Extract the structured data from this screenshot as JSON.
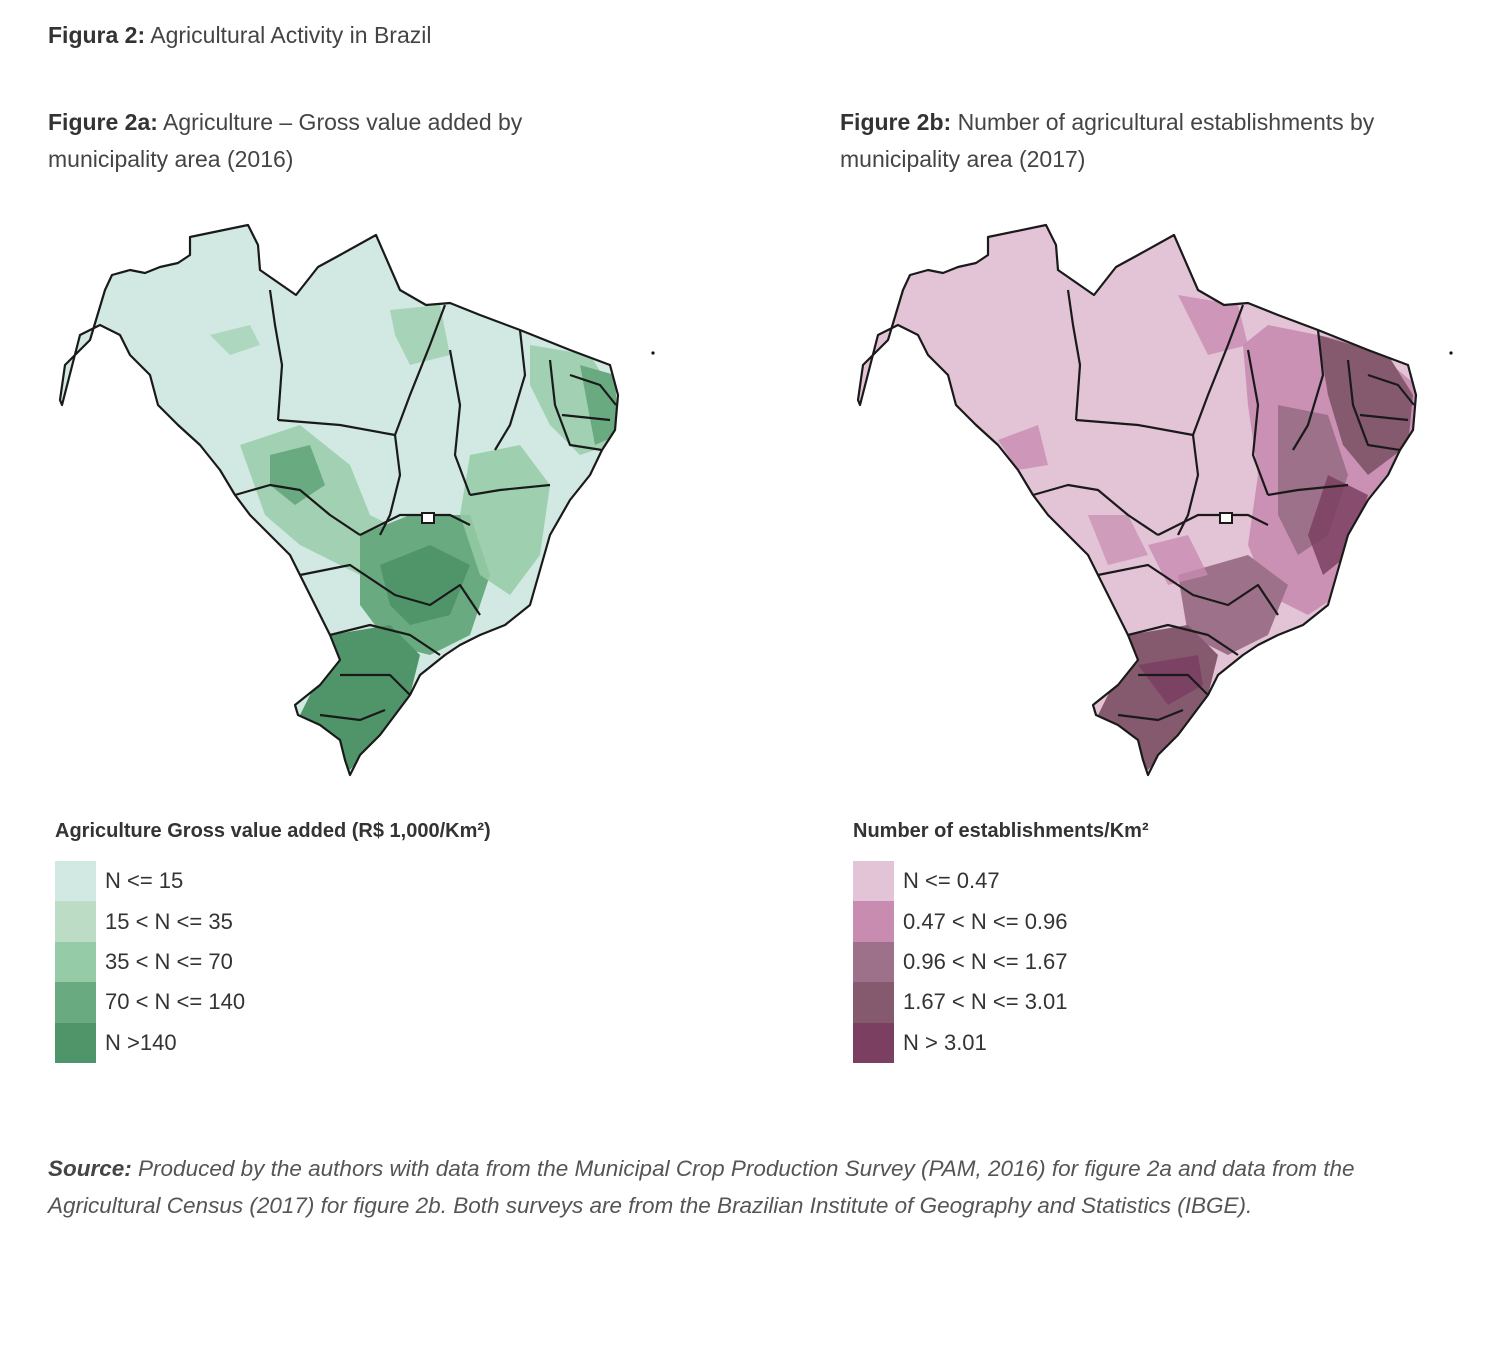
{
  "figure": {
    "prefix": "Figura 2:",
    "title": "Agricultural Activity in Brazil"
  },
  "panel_a": {
    "prefix": "Figure 2a:",
    "title": "Agriculture – Gross value added by municipality area (2016)",
    "legend_title": "Agriculture Gross value added (R$ 1,000/Km²)",
    "classes": [
      {
        "label": "N <= 15",
        "color": "#d1e9e2"
      },
      {
        "label": "15 < N <= 35",
        "color": "#bcdcc6"
      },
      {
        "label": "35 < N <= 70",
        "color": "#95cba6"
      },
      {
        "label": "70 < N <= 140",
        "color": "#6aaa80"
      },
      {
        "label": "N >140",
        "color": "#50956a"
      }
    ]
  },
  "panel_b": {
    "prefix": "Figure 2b:",
    "title": "Number of agricultural establishments by municipality area (2017)",
    "legend_title": "Number of establishments/Km²",
    "classes": [
      {
        "label": "N <= 0.47",
        "color": "#e3c3d6"
      },
      {
        "label": "0.47 < N <= 0.96",
        "color": "#c88cb1"
      },
      {
        "label": "0.96 < N <= 1.67",
        "color": "#9d7189"
      },
      {
        "label": "1.67 < N <= 3.01",
        "color": "#855a6e"
      },
      {
        "label": "N > 3.01",
        "color": "#7b3f62"
      }
    ]
  },
  "source": {
    "prefix": "Source:",
    "text": "Produced by the authors with data from the Municipal Crop Production Survey (PAM, 2016) for figure 2a and data from the Agricultural Census (2017) for figure 2b. Both surveys are from the Brazilian Institute of Geography and Statistics (IBGE)."
  }
}
